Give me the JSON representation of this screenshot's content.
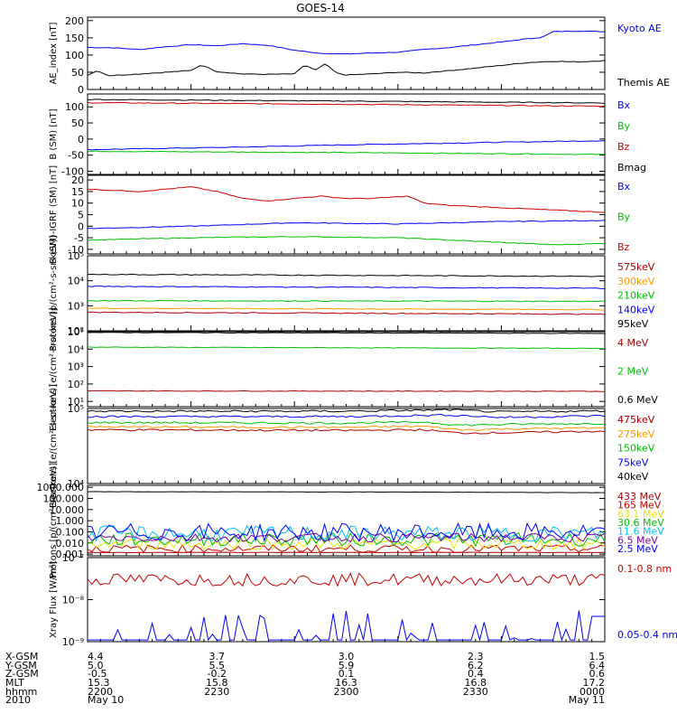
{
  "title": "GOES-14",
  "colors": {
    "black": "#000000",
    "blue": "#0000ff",
    "green": "#00c000",
    "red": "#cc0000",
    "darkred": "#aa0000",
    "orange": "#ff9900",
    "cyan": "#00bfff",
    "yellow": "#e6e600",
    "purple": "#8000a0"
  },
  "chart_data": [
    {
      "type": "line",
      "ylabel": "AE_index [nT]",
      "yscale": "linear",
      "ylim": [
        0,
        210
      ],
      "yticks": [
        0,
        50,
        100,
        150,
        200
      ],
      "ytick_labels": [
        "0",
        "50",
        "100",
        "150",
        "200"
      ],
      "series": [
        {
          "name": "Kyoto AE",
          "color": "blue",
          "kind": "smooth",
          "pts": [
            [
              0,
              122
            ],
            [
              0.05,
              121
            ],
            [
              0.1,
              116
            ],
            [
              0.15,
              124
            ],
            [
              0.2,
              130
            ],
            [
              0.25,
              127
            ],
            [
              0.3,
              133
            ],
            [
              0.35,
              128
            ],
            [
              0.4,
              114
            ],
            [
              0.45,
              105
            ],
            [
              0.5,
              103
            ],
            [
              0.55,
              106
            ],
            [
              0.6,
              108
            ],
            [
              0.65,
              116
            ],
            [
              0.7,
              122
            ],
            [
              0.75,
              130
            ],
            [
              0.8,
              138
            ],
            [
              0.85,
              147
            ],
            [
              0.88,
              152
            ],
            [
              0.9,
              168
            ],
            [
              0.95,
              170
            ],
            [
              1,
              168
            ]
          ]
        },
        {
          "name": "Themis AE",
          "color": "black",
          "kind": "smooth",
          "pts": [
            [
              0,
              42
            ],
            [
              0.02,
              55
            ],
            [
              0.04,
              40
            ],
            [
              0.1,
              45
            ],
            [
              0.15,
              50
            ],
            [
              0.2,
              55
            ],
            [
              0.22,
              72
            ],
            [
              0.25,
              52
            ],
            [
              0.3,
              45
            ],
            [
              0.35,
              44
            ],
            [
              0.4,
              45
            ],
            [
              0.42,
              72
            ],
            [
              0.44,
              55
            ],
            [
              0.46,
              75
            ],
            [
              0.48,
              48
            ],
            [
              0.5,
              42
            ],
            [
              0.55,
              45
            ],
            [
              0.6,
              50
            ],
            [
              0.65,
              48
            ],
            [
              0.7,
              55
            ],
            [
              0.75,
              62
            ],
            [
              0.8,
              70
            ],
            [
              0.85,
              78
            ],
            [
              0.9,
              82
            ],
            [
              0.95,
              80
            ],
            [
              1,
              84
            ]
          ]
        }
      ]
    },
    {
      "type": "line",
      "ylabel": "B (SM) [nT]",
      "yscale": "linear",
      "ylim": [
        -110,
        140
      ],
      "yticks": [
        -100,
        -50,
        0,
        50,
        100
      ],
      "ytick_labels": [
        "-100",
        "-50",
        "0",
        "50",
        "100"
      ],
      "series": [
        {
          "name": "Bx",
          "color": "blue",
          "kind": "smooth",
          "pts": [
            [
              0,
              -33
            ],
            [
              0.3,
              -25
            ],
            [
              0.5,
              -18
            ],
            [
              0.8,
              -10
            ],
            [
              1,
              -5
            ]
          ]
        },
        {
          "name": "By",
          "color": "green",
          "kind": "smooth",
          "pts": [
            [
              0,
              -38
            ],
            [
              0.5,
              -42
            ],
            [
              1,
              -48
            ]
          ]
        },
        {
          "name": "Bz",
          "color": "red",
          "kind": "smooth",
          "pts": [
            [
              0,
              113
            ],
            [
              0.5,
              108
            ],
            [
              1,
              102
            ]
          ]
        },
        {
          "name": "Bmag",
          "color": "black",
          "kind": "smooth",
          "pts": [
            [
              0,
              123
            ],
            [
              0.5,
              118
            ],
            [
              1,
              112
            ]
          ]
        }
      ]
    },
    {
      "type": "line",
      "ylabel": "B (SM)-IGRF (SM) [nT]",
      "yscale": "linear",
      "ylim": [
        -12,
        22
      ],
      "yticks": [
        -10,
        -5,
        0,
        5,
        10,
        15,
        20
      ],
      "ytick_labels": [
        "-10",
        "-5",
        "0",
        "5",
        "10",
        "15",
        "20"
      ],
      "series": [
        {
          "name": "Bx",
          "color": "blue",
          "kind": "smooth",
          "pts": [
            [
              0,
              -1
            ],
            [
              0.2,
              0
            ],
            [
              0.4,
              1.5
            ],
            [
              0.6,
              1
            ],
            [
              0.8,
              2
            ],
            [
              1,
              2.5
            ]
          ]
        },
        {
          "name": "By",
          "color": "green",
          "kind": "smooth",
          "pts": [
            [
              0,
              -6
            ],
            [
              0.2,
              -5
            ],
            [
              0.4,
              -4.5
            ],
            [
              0.6,
              -5
            ],
            [
              0.8,
              -7
            ],
            [
              0.9,
              -8
            ],
            [
              1,
              -7.5
            ]
          ]
        },
        {
          "name": "Bz",
          "color": "red",
          "kind": "smooth",
          "pts": [
            [
              0,
              16
            ],
            [
              0.1,
              15
            ],
            [
              0.2,
              17
            ],
            [
              0.25,
              15
            ],
            [
              0.3,
              12
            ],
            [
              0.35,
              11
            ],
            [
              0.45,
              13
            ],
            [
              0.5,
              12
            ],
            [
              0.55,
              12
            ],
            [
              0.62,
              13
            ],
            [
              0.65,
              10
            ],
            [
              0.7,
              9
            ],
            [
              0.8,
              8
            ],
            [
              0.9,
              7
            ],
            [
              1,
              6
            ]
          ]
        }
      ]
    },
    {
      "type": "line",
      "ylabel": "Protons [p/(cm²-s-sr-keV)]",
      "yscale": "log",
      "ylim": [
        100,
        100000
      ],
      "yticks": [
        100,
        1000,
        10000,
        100000
      ],
      "ytick_labels": [
        "10²",
        "10³",
        "10⁴",
        "10⁵"
      ],
      "series": [
        {
          "name": "575keV",
          "color": "darkred",
          "kind": "flat",
          "v": [
            550,
            460
          ]
        },
        {
          "name": "300keV",
          "color": "orange",
          "kind": "flat",
          "v": [
            800,
            700
          ]
        },
        {
          "name": "210keV",
          "color": "green",
          "kind": "flat",
          "v": [
            1600,
            1500
          ]
        },
        {
          "name": "140keV",
          "color": "blue",
          "kind": "flat",
          "v": [
            6000,
            5000
          ]
        },
        {
          "name": "95keV",
          "color": "black",
          "kind": "flat",
          "v": [
            18000,
            15000
          ]
        }
      ]
    },
    {
      "type": "line",
      "ylabel": "Electrons [e/(cm²-s-sr-keV)]",
      "yscale": "log",
      "ylim": [
        5,
        100000
      ],
      "yticks": [
        10,
        100,
        1000,
        10000,
        100000
      ],
      "ytick_labels": [
        "10¹",
        "10²",
        "10³",
        "10⁴",
        "10⁵"
      ],
      "series": [
        {
          "name": "4 MeV",
          "color": "darkred",
          "kind": "flat",
          "v": [
            40,
            38
          ]
        },
        {
          "name": "2 MeV",
          "color": "green",
          "kind": "flat",
          "v": [
            13000,
            11000
          ]
        },
        {
          "name": "0.6 MeV",
          "color": "black",
          "kind": "flat",
          "v": [
            90000,
            80000
          ]
        }
      ]
    },
    {
      "type": "line",
      "ylabel": "Electrons [e/(cm²-s-sr-keV)]",
      "yscale": "log",
      "ylim": [
        10000,
        100000
      ],
      "yticks": [
        10000,
        100000
      ],
      "ytick_labels": [
        "10⁴",
        "10⁵"
      ],
      "series": [
        {
          "name": "475keV",
          "color": "darkred",
          "kind": "smooth",
          "pts": [
            [
              0,
              52000
            ],
            [
              0.5,
              51000
            ],
            [
              0.65,
              52000
            ],
            [
              0.72,
              47000
            ],
            [
              0.85,
              48000
            ],
            [
              1,
              50000
            ]
          ]
        },
        {
          "name": "275keV",
          "color": "orange",
          "kind": "smooth",
          "pts": [
            [
              0,
              57000
            ],
            [
              0.5,
              56000
            ],
            [
              0.65,
              58000
            ],
            [
              0.72,
              52000
            ],
            [
              0.85,
              54000
            ],
            [
              1,
              55000
            ]
          ]
        },
        {
          "name": "150keV",
          "color": "green",
          "kind": "smooth",
          "pts": [
            [
              0,
              65000
            ],
            [
              0.5,
              64000
            ],
            [
              0.65,
              66000
            ],
            [
              0.72,
              60000
            ],
            [
              0.85,
              62000
            ],
            [
              1,
              63000
            ]
          ]
        },
        {
          "name": "75keV",
          "color": "blue",
          "kind": "smooth",
          "pts": [
            [
              0,
              78000
            ],
            [
              0.5,
              78000
            ],
            [
              0.7,
              82000
            ],
            [
              0.8,
              76000
            ],
            [
              1,
              80000
            ]
          ]
        },
        {
          "name": "40keV",
          "color": "black",
          "kind": "smooth",
          "pts": [
            [
              0,
              92000
            ],
            [
              0.5,
              92000
            ],
            [
              0.7,
              96000
            ],
            [
              0.8,
              90000
            ],
            [
              1,
              93000
            ]
          ]
        }
      ]
    },
    {
      "type": "line",
      "ylabel": "Protons [p/(cm²-s-sr-keV)]",
      "yscale": "log",
      "ylim": [
        0.0007,
        1500
      ],
      "yticks": [
        0.001,
        0.01,
        0.1,
        1,
        10,
        100,
        1000
      ],
      "ytick_labels": [
        "0.001",
        "0.010",
        "0.100",
        "1.000",
        "10.000",
        "100.000",
        "1000.000"
      ],
      "series": [
        {
          "name": "433 MeV",
          "color": "darkred",
          "kind": "flat",
          "v": [
            0.0014,
            0.0014
          ]
        },
        {
          "name": "165 MeV",
          "color": "red",
          "kind": "noisy",
          "v": [
            0.003,
            0.003
          ],
          "amp": 0.35
        },
        {
          "name": "63.1 MeV",
          "color": "yellow",
          "kind": "noisy",
          "v": [
            0.008,
            0.008
          ],
          "amp": 0.5
        },
        {
          "name": "30.6 MeV",
          "color": "green",
          "kind": "noisy",
          "v": [
            0.02,
            0.02
          ],
          "amp": 0.6
        },
        {
          "name": "11.6 MeV",
          "color": "cyan",
          "kind": "noisy",
          "v": [
            0.07,
            0.07
          ],
          "amp": 0.7
        },
        {
          "name": "6.5 MeV",
          "color": "purple",
          "kind": "noisy",
          "v": [
            0.03,
            0.03
          ],
          "amp": 0.4
        },
        {
          "name": "2.5 MeV",
          "color": "blue",
          "kind": "noisy",
          "v": [
            0.09,
            0.09
          ],
          "amp": 0.8
        },
        {
          "name": "",
          "color": "black",
          "kind": "smooth",
          "pts": [
            [
              0,
              400
            ],
            [
              0.5,
              380
            ],
            [
              0.8,
              350
            ],
            [
              1,
              330
            ]
          ]
        }
      ]
    },
    {
      "type": "line",
      "ylabel": "Xray Flux [W/m²]",
      "yscale": "log",
      "ylim": [
        1e-09,
        1e-07
      ],
      "yticks": [
        1e-09,
        1e-08,
        1e-07
      ],
      "ytick_labels": [
        "10⁻⁹",
        "10⁻⁸",
        "10⁻⁷"
      ],
      "series": [
        {
          "name": "0.1-0.8 nm",
          "color": "red",
          "kind": "noisy",
          "v": [
            3e-08,
            3e-08
          ],
          "amp": 0.15
        },
        {
          "name": "0.05-0.4 nm",
          "color": "blue",
          "kind": "spiky",
          "v": [
            1.1e-09,
            1.1e-09
          ]
        }
      ]
    }
  ],
  "xaxis": {
    "row_labels": [
      "X-GSM",
      "Y-GSM",
      "Z-GSM",
      "MLT",
      "hhmm",
      "2010"
    ],
    "columns": [
      [
        "4.4",
        "5.0",
        "-0.5",
        "15.3",
        "2200",
        "May 10"
      ],
      [
        "3.7",
        "5.5",
        "-0.2",
        "15.8",
        "2230",
        ""
      ],
      [
        "3.0",
        "5.9",
        "0.1",
        "16.3",
        "2300",
        ""
      ],
      [
        "2.3",
        "6.2",
        "0.4",
        "16.8",
        "2330",
        ""
      ],
      [
        "1.5",
        "6.4",
        "0.6",
        "17.2",
        "0000",
        "May 11"
      ]
    ]
  }
}
